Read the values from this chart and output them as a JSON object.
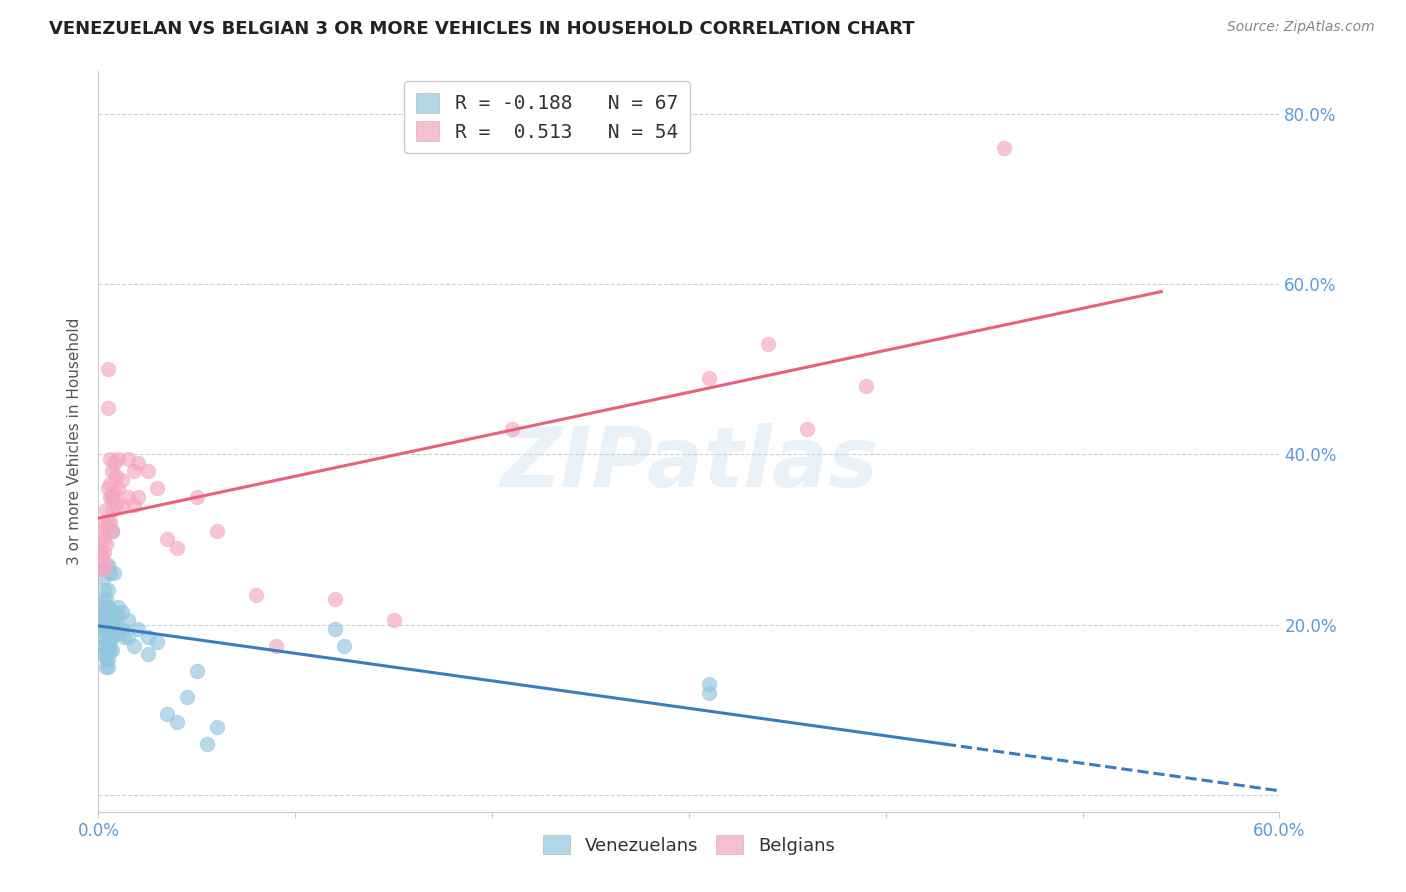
{
  "title": "VENEZUELAN VS BELGIAN 3 OR MORE VEHICLES IN HOUSEHOLD CORRELATION CHART",
  "source": "Source: ZipAtlas.com",
  "ylabel": "3 or more Vehicles in Household",
  "watermark": "ZIPatlas",
  "x_min": 0.0,
  "x_max": 0.6,
  "y_min": -0.02,
  "y_max": 0.85,
  "x_tick_pos": [
    0.0,
    0.1,
    0.2,
    0.3,
    0.4,
    0.5,
    0.6
  ],
  "x_tick_labels": [
    "0.0%",
    "",
    "",
    "",
    "",
    "",
    "60.0%"
  ],
  "y_tick_pos": [
    0.0,
    0.2,
    0.4,
    0.6,
    0.8
  ],
  "y_tick_labels": [
    "",
    "20.0%",
    "40.0%",
    "60.0%",
    "80.0%"
  ],
  "venezuelan_color": "#92c5de",
  "belgian_color": "#f4a6c0",
  "venezuelan_line_color": "#3a7dbf",
  "belgian_line_color": "#e8607a",
  "venezuelan_R": -0.188,
  "venezuelan_N": 67,
  "belgian_R": 0.513,
  "belgian_N": 54,
  "venezuelan_scatter": [
    [
      0.001,
      0.22
    ],
    [
      0.001,
      0.21
    ],
    [
      0.002,
      0.215
    ],
    [
      0.002,
      0.205
    ],
    [
      0.003,
      0.255
    ],
    [
      0.003,
      0.24
    ],
    [
      0.003,
      0.225
    ],
    [
      0.003,
      0.2
    ],
    [
      0.003,
      0.195
    ],
    [
      0.003,
      0.185
    ],
    [
      0.003,
      0.175
    ],
    [
      0.003,
      0.165
    ],
    [
      0.004,
      0.23
    ],
    [
      0.004,
      0.215
    ],
    [
      0.004,
      0.2
    ],
    [
      0.004,
      0.19
    ],
    [
      0.004,
      0.18
    ],
    [
      0.004,
      0.17
    ],
    [
      0.004,
      0.16
    ],
    [
      0.004,
      0.15
    ],
    [
      0.005,
      0.27
    ],
    [
      0.005,
      0.24
    ],
    [
      0.005,
      0.22
    ],
    [
      0.005,
      0.21
    ],
    [
      0.005,
      0.2
    ],
    [
      0.005,
      0.19
    ],
    [
      0.005,
      0.18
    ],
    [
      0.005,
      0.17
    ],
    [
      0.005,
      0.16
    ],
    [
      0.005,
      0.15
    ],
    [
      0.006,
      0.26
    ],
    [
      0.006,
      0.21
    ],
    [
      0.006,
      0.195
    ],
    [
      0.006,
      0.18
    ],
    [
      0.006,
      0.17
    ],
    [
      0.007,
      0.35
    ],
    [
      0.007,
      0.31
    ],
    [
      0.007,
      0.2
    ],
    [
      0.007,
      0.185
    ],
    [
      0.007,
      0.17
    ],
    [
      0.008,
      0.26
    ],
    [
      0.008,
      0.215
    ],
    [
      0.008,
      0.205
    ],
    [
      0.008,
      0.195
    ],
    [
      0.01,
      0.22
    ],
    [
      0.01,
      0.21
    ],
    [
      0.01,
      0.19
    ],
    [
      0.012,
      0.215
    ],
    [
      0.012,
      0.195
    ],
    [
      0.013,
      0.185
    ],
    [
      0.015,
      0.205
    ],
    [
      0.015,
      0.185
    ],
    [
      0.018,
      0.175
    ],
    [
      0.02,
      0.195
    ],
    [
      0.025,
      0.185
    ],
    [
      0.025,
      0.165
    ],
    [
      0.03,
      0.18
    ],
    [
      0.035,
      0.095
    ],
    [
      0.04,
      0.085
    ],
    [
      0.045,
      0.115
    ],
    [
      0.05,
      0.145
    ],
    [
      0.055,
      0.06
    ],
    [
      0.06,
      0.08
    ],
    [
      0.12,
      0.195
    ],
    [
      0.125,
      0.175
    ],
    [
      0.31,
      0.13
    ],
    [
      0.31,
      0.12
    ]
  ],
  "belgian_scatter": [
    [
      0.001,
      0.285
    ],
    [
      0.001,
      0.265
    ],
    [
      0.002,
      0.305
    ],
    [
      0.002,
      0.28
    ],
    [
      0.003,
      0.32
    ],
    [
      0.003,
      0.3
    ],
    [
      0.003,
      0.285
    ],
    [
      0.003,
      0.265
    ],
    [
      0.004,
      0.335
    ],
    [
      0.004,
      0.315
    ],
    [
      0.004,
      0.295
    ],
    [
      0.004,
      0.27
    ],
    [
      0.005,
      0.5
    ],
    [
      0.005,
      0.455
    ],
    [
      0.005,
      0.36
    ],
    [
      0.005,
      0.32
    ],
    [
      0.006,
      0.395
    ],
    [
      0.006,
      0.365
    ],
    [
      0.006,
      0.35
    ],
    [
      0.006,
      0.32
    ],
    [
      0.007,
      0.38
    ],
    [
      0.007,
      0.35
    ],
    [
      0.007,
      0.335
    ],
    [
      0.007,
      0.31
    ],
    [
      0.008,
      0.39
    ],
    [
      0.008,
      0.355
    ],
    [
      0.009,
      0.375
    ],
    [
      0.009,
      0.34
    ],
    [
      0.01,
      0.395
    ],
    [
      0.01,
      0.36
    ],
    [
      0.012,
      0.37
    ],
    [
      0.012,
      0.34
    ],
    [
      0.015,
      0.395
    ],
    [
      0.015,
      0.35
    ],
    [
      0.018,
      0.38
    ],
    [
      0.018,
      0.34
    ],
    [
      0.02,
      0.39
    ],
    [
      0.02,
      0.35
    ],
    [
      0.025,
      0.38
    ],
    [
      0.03,
      0.36
    ],
    [
      0.035,
      0.3
    ],
    [
      0.04,
      0.29
    ],
    [
      0.05,
      0.35
    ],
    [
      0.06,
      0.31
    ],
    [
      0.08,
      0.235
    ],
    [
      0.09,
      0.175
    ],
    [
      0.12,
      0.23
    ],
    [
      0.15,
      0.205
    ],
    [
      0.21,
      0.43
    ],
    [
      0.31,
      0.49
    ],
    [
      0.34,
      0.53
    ],
    [
      0.36,
      0.43
    ],
    [
      0.39,
      0.48
    ],
    [
      0.46,
      0.76
    ]
  ],
  "background_color": "#ffffff",
  "grid_color": "#d0d0d0",
  "title_fontsize": 13,
  "source_fontsize": 10,
  "ylabel_fontsize": 11,
  "tick_fontsize": 12,
  "watermark_fontsize": 60,
  "legend_fontsize": 14,
  "tick_color": "#5b9bd5",
  "ylabel_color": "#555555"
}
